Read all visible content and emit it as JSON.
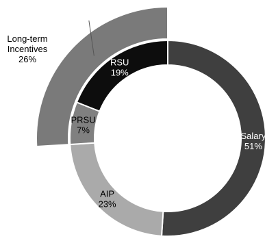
{
  "chart_data": {
    "type": "pie",
    "title": "",
    "inner_ring": [
      {
        "label": "Salary",
        "value": 51,
        "value_label": "51%",
        "color": "#3f3f3f",
        "text_color": "#ffffff"
      },
      {
        "label": "AIP",
        "value": 23,
        "value_label": "23%",
        "color": "#aaaaaa",
        "text_color": "#000000"
      },
      {
        "label": "PRSU",
        "value": 7,
        "value_label": "7%",
        "color": "#808080",
        "text_color": "#000000"
      },
      {
        "label": "RSU",
        "value": 19,
        "value_label": "19%",
        "color": "#0d0d0d",
        "text_color": "#ffffff"
      }
    ],
    "outer_ring": {
      "label_line1": "Long-term",
      "label_line2": "Incentives",
      "value": 26,
      "value_label": "26%",
      "color": "#7a7a7a"
    },
    "legend": "none"
  }
}
